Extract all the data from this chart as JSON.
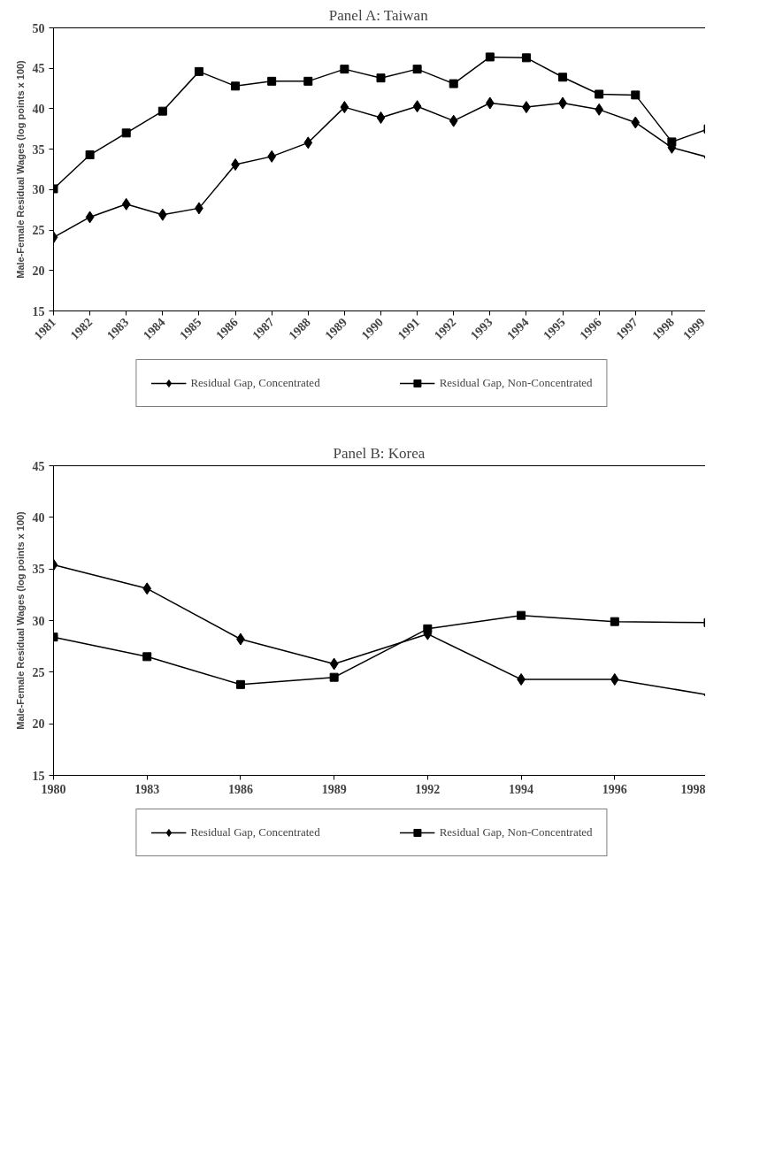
{
  "chart_data": [
    {
      "type": "line",
      "title": "Panel A:  Taiwan",
      "ylabel": "Male-Female Residual Wages (log points x 100)",
      "categories": [
        "1981",
        "1982",
        "1983",
        "1984",
        "1985",
        "1986",
        "1987",
        "1988",
        "1989",
        "1990",
        "1991",
        "1992",
        "1993",
        "1994",
        "1995",
        "1996",
        "1997",
        "1998",
        "1999"
      ],
      "ylim": [
        15,
        50
      ],
      "yticks": [
        15,
        20,
        25,
        30,
        35,
        40,
        45,
        50
      ],
      "grid": false,
      "legend": "bottom",
      "series": [
        {
          "name": "Residual Gap, Concentrated",
          "color": "#000000",
          "marker": "diamond",
          "values": [
            24.1,
            26.6,
            28.2,
            26.9,
            27.7,
            33.1,
            34.1,
            35.8,
            40.2,
            38.9,
            40.3,
            38.5,
            40.7,
            40.2,
            40.7,
            39.9,
            38.3,
            35.2,
            34.0
          ]
        },
        {
          "name": "Residual Gap, Non-Concentrated",
          "color": "#000000",
          "marker": "square",
          "values": [
            30.1,
            34.3,
            37.0,
            39.7,
            44.6,
            42.8,
            43.4,
            43.4,
            44.9,
            43.8,
            44.9,
            43.1,
            46.4,
            46.3,
            43.9,
            41.8,
            41.7,
            35.9,
            37.5
          ]
        }
      ]
    },
    {
      "type": "line",
      "title": "Panel B:  Korea",
      "ylabel": "Male-Female Residual Wages (log points x 100)",
      "categories": [
        "1980",
        "1983",
        "1986",
        "1989",
        "1992",
        "1994",
        "1996",
        "1998"
      ],
      "ylim": [
        15,
        45
      ],
      "yticks": [
        15,
        20,
        25,
        30,
        35,
        40,
        45
      ],
      "grid": false,
      "legend": "bottom",
      "series": [
        {
          "name": "Residual Gap, Concentrated",
          "color": "#000000",
          "marker": "diamond",
          "values": [
            35.4,
            33.1,
            28.2,
            25.8,
            28.7,
            24.3,
            24.3,
            22.8
          ]
        },
        {
          "name": "Residual Gap, Non-Concentrated",
          "color": "#000000",
          "marker": "square",
          "values": [
            28.4,
            26.5,
            23.8,
            24.5,
            29.2,
            30.5,
            29.9,
            29.8
          ]
        }
      ]
    }
  ]
}
